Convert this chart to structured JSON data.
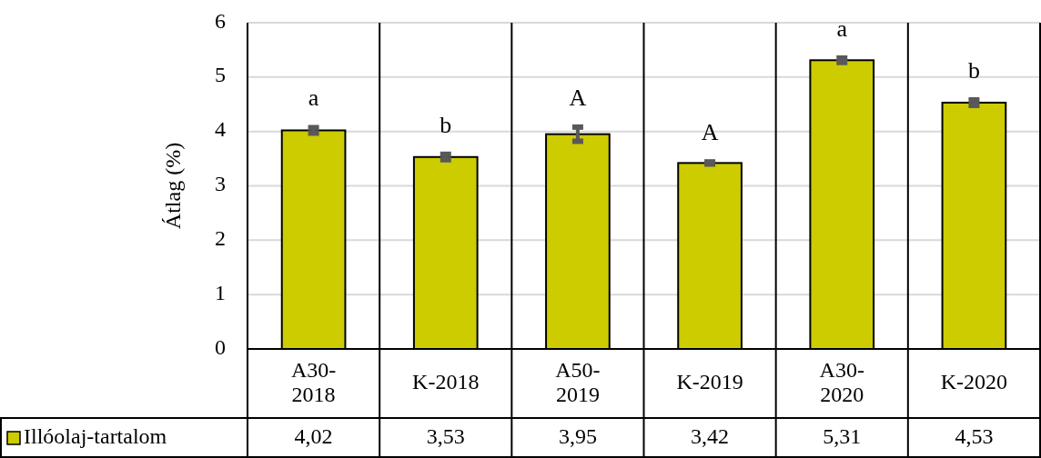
{
  "chart_data": {
    "type": "bar",
    "ylabel": "Átlag (%)",
    "categories": [
      "A30-2018",
      "K-2018",
      "A50-2019",
      "K-2019",
      "A30-2020",
      "K-2020"
    ],
    "series": [
      {
        "name": "Illóolaj-tartalom",
        "color": "#cccc00",
        "values": [
          4.02,
          3.53,
          3.95,
          3.42,
          5.31,
          4.53
        ],
        "errors": [
          0.05,
          0.05,
          0.13,
          0.02,
          0.04,
          0.05
        ],
        "value_labels": [
          "4,02",
          "3,53",
          "3,95",
          "3,42",
          "5,31",
          "4,53"
        ]
      }
    ],
    "ylim": [
      0,
      6
    ],
    "yticks": [
      0,
      1,
      2,
      3,
      4,
      5,
      6
    ],
    "grid": "y",
    "legend": "bottom",
    "annotations": [
      "a",
      "b",
      "A",
      "A",
      "a",
      "b"
    ]
  }
}
